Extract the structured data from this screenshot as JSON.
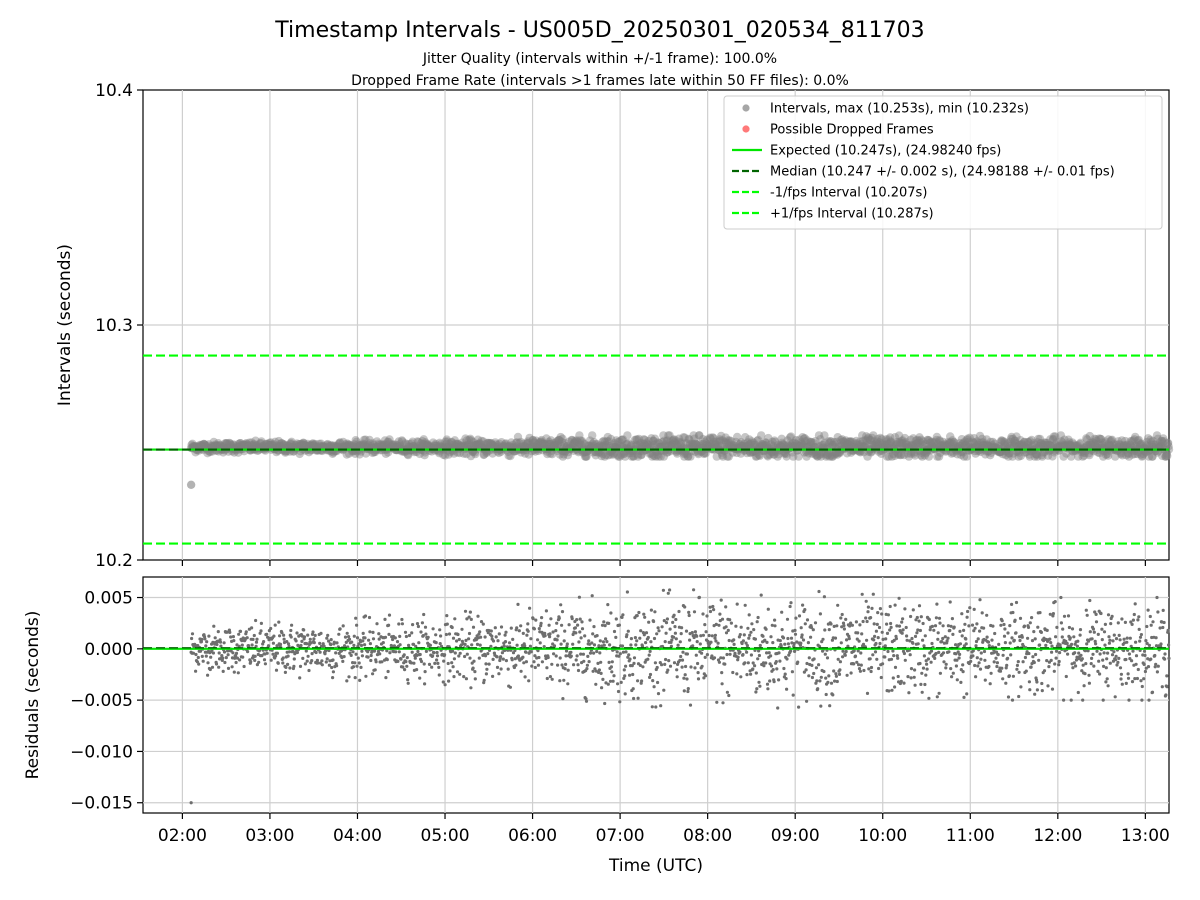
{
  "chart_data": {
    "type": "scatter",
    "title": "Timestamp Intervals - US005D_20250301_020534_811703",
    "subtitles": [
      "Jitter Quality (intervals within +/-1 frame): 100.0%",
      "Dropped Frame Rate (intervals >1 frames late within 50 FF files): 0.0%"
    ],
    "xlabel": "Time (UTC)",
    "xlim": [
      1.55,
      13.27
    ],
    "x_ticks": [
      2,
      3,
      4,
      5,
      6,
      7,
      8,
      9,
      10,
      11,
      12,
      13
    ],
    "x_tick_labels": [
      "02:00",
      "03:00",
      "04:00",
      "05:00",
      "06:00",
      "07:00",
      "08:00",
      "09:00",
      "10:00",
      "11:00",
      "12:00",
      "13:00"
    ],
    "top_panel": {
      "ylabel": "Intervals (seconds)",
      "ylim": [
        10.2,
        10.4
      ],
      "y_ticks": [
        10.2,
        10.3,
        10.4
      ],
      "y_tick_labels": [
        "10.2",
        "10.3",
        "10.4"
      ],
      "grid": true,
      "legend_position": "top-right",
      "legend": [
        {
          "label": "Intervals, max (10.253s), min (10.232s)",
          "kind": "marker",
          "color": "#808080"
        },
        {
          "label": "Possible Dropped Frames",
          "kind": "marker",
          "color": "#ff4040"
        },
        {
          "label": "Expected (10.247s), (24.98240 fps)",
          "kind": "solid",
          "color": "#00e600"
        },
        {
          "label": "Median (10.247 +/- 0.002 s), (24.98188 +/- 0.01 fps)",
          "kind": "dashed",
          "color": "#006400"
        },
        {
          "label": "-1/fps Interval (10.207s)",
          "kind": "dashed",
          "color": "#00ff00"
        },
        {
          "label": "+1/fps Interval (10.287s)",
          "kind": "dashed",
          "color": "#00ff00"
        }
      ],
      "reference_lines": {
        "expected": 10.247,
        "median": 10.247,
        "minus_1fps": 10.207,
        "plus_1fps": 10.287
      },
      "intervals_range": {
        "x_start": 2.1,
        "x_end": 13.27,
        "center": 10.248,
        "min": 10.232,
        "max": 10.253
      },
      "outlier_point": {
        "x": 2.1,
        "y": 10.232
      }
    },
    "bottom_panel": {
      "ylabel": "Residuals (seconds)",
      "ylim": [
        -0.016,
        0.007
      ],
      "y_ticks": [
        0.005,
        0.0,
        -0.005,
        -0.01,
        -0.015
      ],
      "y_tick_labels": [
        "0.005",
        "0.000",
        "−0.005",
        "−0.010",
        "−0.015"
      ],
      "grid": true,
      "zero_line": 0.0,
      "residual_envelope": [
        {
          "x": 2.1,
          "amp": 0.0025
        },
        {
          "x": 3.5,
          "amp": 0.003
        },
        {
          "x": 5.0,
          "amp": 0.0035
        },
        {
          "x": 6.0,
          "amp": 0.0045
        },
        {
          "x": 7.0,
          "amp": 0.0055
        },
        {
          "x": 8.2,
          "amp": 0.006
        },
        {
          "x": 9.5,
          "amp": 0.0055
        },
        {
          "x": 11.0,
          "amp": 0.005
        },
        {
          "x": 13.27,
          "amp": 0.005
        }
      ],
      "outlier_point": {
        "x": 2.1,
        "y": -0.015
      }
    }
  }
}
